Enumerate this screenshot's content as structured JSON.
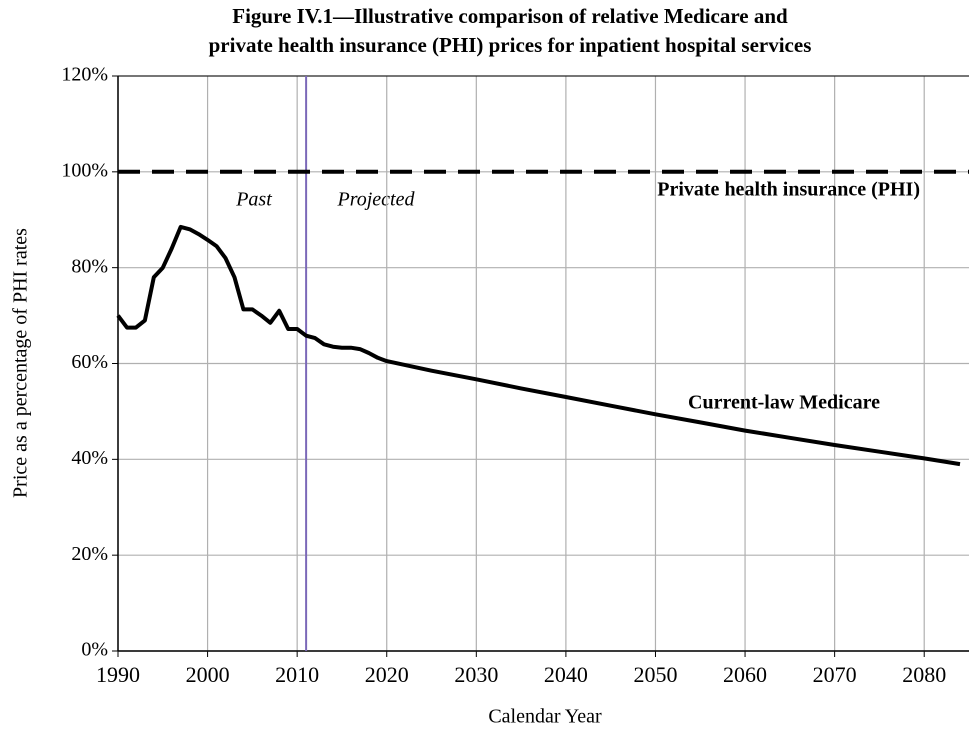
{
  "chart_data": {
    "type": "line",
    "title": [
      "Figure IV.1—Illustrative comparison of relative Medicare and",
      "private health insurance (PHI) prices for inpatient hospital services"
    ],
    "xlabel": "Calendar Year",
    "ylabel": "Price as a percentage of PHI rates",
    "annotations": [
      "Past",
      "Projected"
    ],
    "divider_x": 2011,
    "divider_color": "#7b68b8",
    "xlim": [
      1990,
      2085
    ],
    "xticks": [
      1990,
      2000,
      2010,
      2020,
      2030,
      2040,
      2050,
      2060,
      2070,
      2080
    ],
    "ylim": [
      0,
      120
    ],
    "yticks": [
      {
        "value": 0,
        "label": "0%"
      },
      {
        "value": 20,
        "label": "20%"
      },
      {
        "value": 40,
        "label": "40%"
      },
      {
        "value": 60,
        "label": "60%"
      },
      {
        "value": 80,
        "label": "80%"
      },
      {
        "value": 100,
        "label": "100%"
      },
      {
        "value": 120,
        "label": "120%"
      }
    ],
    "grid": true,
    "series": [
      {
        "name": "Private health insurance (PHI)",
        "color": "#000000",
        "dashed": true,
        "x": [
          1990,
          2085
        ],
        "values": [
          100,
          100
        ]
      },
      {
        "name": "Current-law Medicare",
        "color": "#000000",
        "dashed": false,
        "x": [
          1990,
          1991,
          1992,
          1993,
          1994,
          1995,
          1996,
          1997,
          1998,
          1999,
          2000,
          2001,
          2002,
          2003,
          2004,
          2005,
          2006,
          2007,
          2008,
          2009,
          2010,
          2011,
          2012,
          2013,
          2014,
          2015,
          2016,
          2017,
          2018,
          2019,
          2020,
          2025,
          2030,
          2035,
          2040,
          2045,
          2050,
          2055,
          2060,
          2065,
          2070,
          2075,
          2080,
          2084
        ],
        "values": [
          70,
          67.5,
          67.5,
          69,
          78,
          80,
          84,
          88.5,
          88,
          87,
          85.8,
          84.5,
          82,
          78,
          71.3,
          71.3,
          70,
          68.5,
          71,
          67.2,
          67.2,
          65.8,
          65.3,
          64,
          63.5,
          63.3,
          63.3,
          63,
          62.2,
          61.2,
          60.5,
          58.5,
          56.7,
          54.8,
          53,
          51.2,
          49.4,
          47.7,
          46,
          44.5,
          43,
          41.6,
          40.2,
          39
        ]
      }
    ]
  }
}
